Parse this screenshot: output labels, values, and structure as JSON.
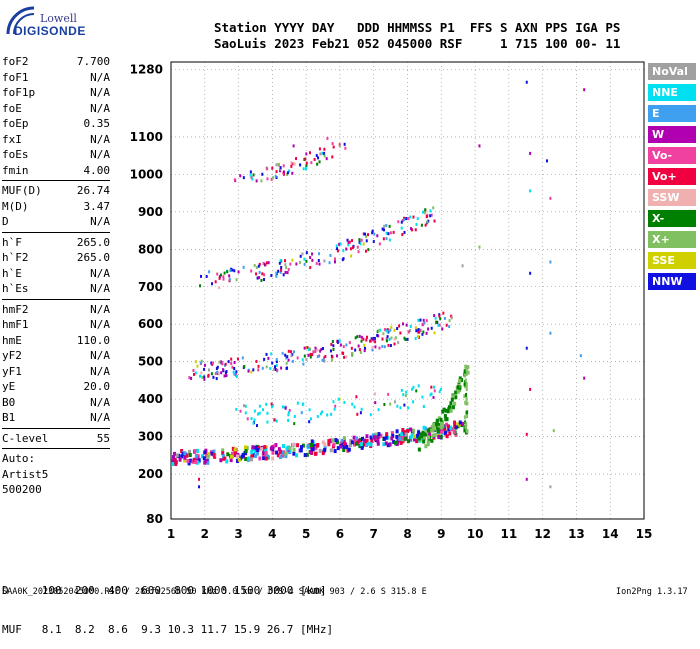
{
  "logo": {
    "top": "Lowell",
    "bottom": "DIGISONDE"
  },
  "header": {
    "line1": "Station YYYY DAY   DDD HHMMSS P1  FFS S AXN PPS IGA PS",
    "line2": "SaoLuis 2023 Feb21 052 045000 RSF     1 715 100 00- 11"
  },
  "params": [
    {
      "name": "foF2",
      "value": "7.700"
    },
    {
      "name": "foF1",
      "value": "N/A"
    },
    {
      "name": "foF1p",
      "value": "N/A"
    },
    {
      "name": "foE",
      "value": "N/A"
    },
    {
      "name": "foEp",
      "value": "0.35"
    },
    {
      "name": "fxI",
      "value": "N/A"
    },
    {
      "name": "foEs",
      "value": "N/A"
    },
    {
      "name": "fmin",
      "value": "4.00"
    },
    {
      "name": "MUF(D)",
      "value": "26.74"
    },
    {
      "name": "M(D)",
      "value": "3.47"
    },
    {
      "name": "D",
      "value": "N/A"
    },
    {
      "name": "h`F",
      "value": "265.0"
    },
    {
      "name": "h`F2",
      "value": "265.0"
    },
    {
      "name": "h`E",
      "value": "N/A"
    },
    {
      "name": "h`Es",
      "value": "N/A"
    },
    {
      "name": "hmF2",
      "value": "N/A"
    },
    {
      "name": "hmF1",
      "value": "N/A"
    },
    {
      "name": "hmE",
      "value": "110.0"
    },
    {
      "name": "yF2",
      "value": "N/A"
    },
    {
      "name": "yF1",
      "value": "N/A"
    },
    {
      "name": "yE",
      "value": "20.0"
    },
    {
      "name": "B0",
      "value": "N/A"
    },
    {
      "name": "B1",
      "value": "N/A"
    },
    {
      "name": "C-level",
      "value": "55"
    }
  ],
  "auto": {
    "line1": "Auto:",
    "line2": "Artist5",
    "line3": "500200"
  },
  "legend": [
    {
      "label": "NoVal",
      "color": "#a0a0a0"
    },
    {
      "label": "NNE",
      "color": "#00e0f0"
    },
    {
      "label": "E",
      "color": "#40a0f0"
    },
    {
      "label": "W",
      "color": "#b000b0"
    },
    {
      "label": "Vo-",
      "color": "#f040a0"
    },
    {
      "label": "Vo+",
      "color": "#f00040"
    },
    {
      "label": "SSW",
      "color": "#f0b0b0"
    },
    {
      "label": "X-",
      "color": "#008000"
    },
    {
      "label": "X+",
      "color": "#80c060"
    },
    {
      "label": "SSE",
      "color": "#d0d000"
    },
    {
      "label": "NNW",
      "color": "#1010e0"
    }
  ],
  "muf_table": {
    "line1": "D     100  200  400  600  800 1000 1500 3000 [km]",
    "line2": "MUF   8.1  8.2  8.6  9.3 10.3 11.7 15.9 26.7 [MHz]"
  },
  "footer": {
    "left": "SAA0K_2023052045000.RSF / 280fx256h 50 kHz 5.0 km / DPS-4 SAA0K 903 / 2.6 S 315.8 E",
    "right": "Ion2Png 1.3.17"
  },
  "chart_data": {
    "type": "scatter",
    "xlim": [
      1,
      15
    ],
    "ylim": [
      80,
      1300
    ],
    "x_ticks": [
      1,
      2,
      3,
      4,
      5,
      6,
      7,
      8,
      9,
      10,
      11,
      12,
      13,
      14,
      15
    ],
    "y_ticks": [
      80,
      200,
      300,
      400,
      500,
      600,
      700,
      800,
      900,
      1000,
      1100,
      1280
    ],
    "xlabel": "",
    "ylabel": "",
    "grid": true,
    "series": [
      {
        "name": "NoVal",
        "color": "#a0a0a0"
      },
      {
        "name": "NNE",
        "color": "#00e0f0"
      },
      {
        "name": "E",
        "color": "#40a0f0"
      },
      {
        "name": "W",
        "color": "#b000b0"
      },
      {
        "name": "Vo-",
        "color": "#f040a0"
      },
      {
        "name": "Vo+",
        "color": "#f00040"
      },
      {
        "name": "SSW",
        "color": "#f0b0b0"
      },
      {
        "name": "X-",
        "color": "#008000"
      },
      {
        "name": "X+",
        "color": "#80c060"
      },
      {
        "name": "SSE",
        "color": "#d0d000"
      },
      {
        "name": "NNW",
        "color": "#1010e0"
      }
    ],
    "traces": [
      {
        "label": "F-trace",
        "x_start": 1.0,
        "x_end": 9.6,
        "h_start": 250,
        "h_end": 330,
        "spread": 18,
        "density": 420
      },
      {
        "label": "X-trace",
        "x_start": 8.3,
        "x_end": 9.75,
        "h_start": 290,
        "h_end": 490,
        "spread": 20,
        "density": 80
      },
      {
        "label": "2F-trace",
        "x_start": 1.5,
        "x_end": 9.3,
        "h_start": 480,
        "h_end": 620,
        "spread": 25,
        "density": 260
      },
      {
        "label": "3F-trace",
        "x_start": 1.8,
        "x_end": 8.8,
        "h_start": 720,
        "h_end": 900,
        "spread": 25,
        "density": 170
      },
      {
        "label": "4F-trace",
        "x_start": 2.8,
        "x_end": 6.2,
        "h_start": 990,
        "h_end": 1090,
        "spread": 20,
        "density": 70
      },
      {
        "label": "scatter-mid",
        "x_start": 2.8,
        "x_end": 9.0,
        "h_start": 360,
        "h_end": 420,
        "spread": 30,
        "density": 90
      }
    ],
    "sparse_points": [
      {
        "x": 11.5,
        "y": 1250
      },
      {
        "x": 11.6,
        "y": 1060
      },
      {
        "x": 11.6,
        "y": 960
      },
      {
        "x": 11.6,
        "y": 740
      },
      {
        "x": 11.5,
        "y": 540
      },
      {
        "x": 11.6,
        "y": 430
      },
      {
        "x": 11.5,
        "y": 310
      },
      {
        "x": 11.5,
        "y": 190
      },
      {
        "x": 12.1,
        "y": 1040
      },
      {
        "x": 12.2,
        "y": 940
      },
      {
        "x": 12.2,
        "y": 770
      },
      {
        "x": 12.2,
        "y": 580
      },
      {
        "x": 12.3,
        "y": 320
      },
      {
        "x": 12.2,
        "y": 170
      },
      {
        "x": 13.2,
        "y": 1230
      },
      {
        "x": 13.1,
        "y": 520
      },
      {
        "x": 13.2,
        "y": 460
      },
      {
        "x": 10.1,
        "y": 1080
      },
      {
        "x": 10.1,
        "y": 810
      },
      {
        "x": 9.6,
        "y": 760
      },
      {
        "x": 1.0,
        "y": 240
      },
      {
        "x": 1.8,
        "y": 170
      },
      {
        "x": 1.8,
        "y": 190
      },
      {
        "x": 4.6,
        "y": 1080
      },
      {
        "x": 5.6,
        "y": 1100
      }
    ]
  }
}
